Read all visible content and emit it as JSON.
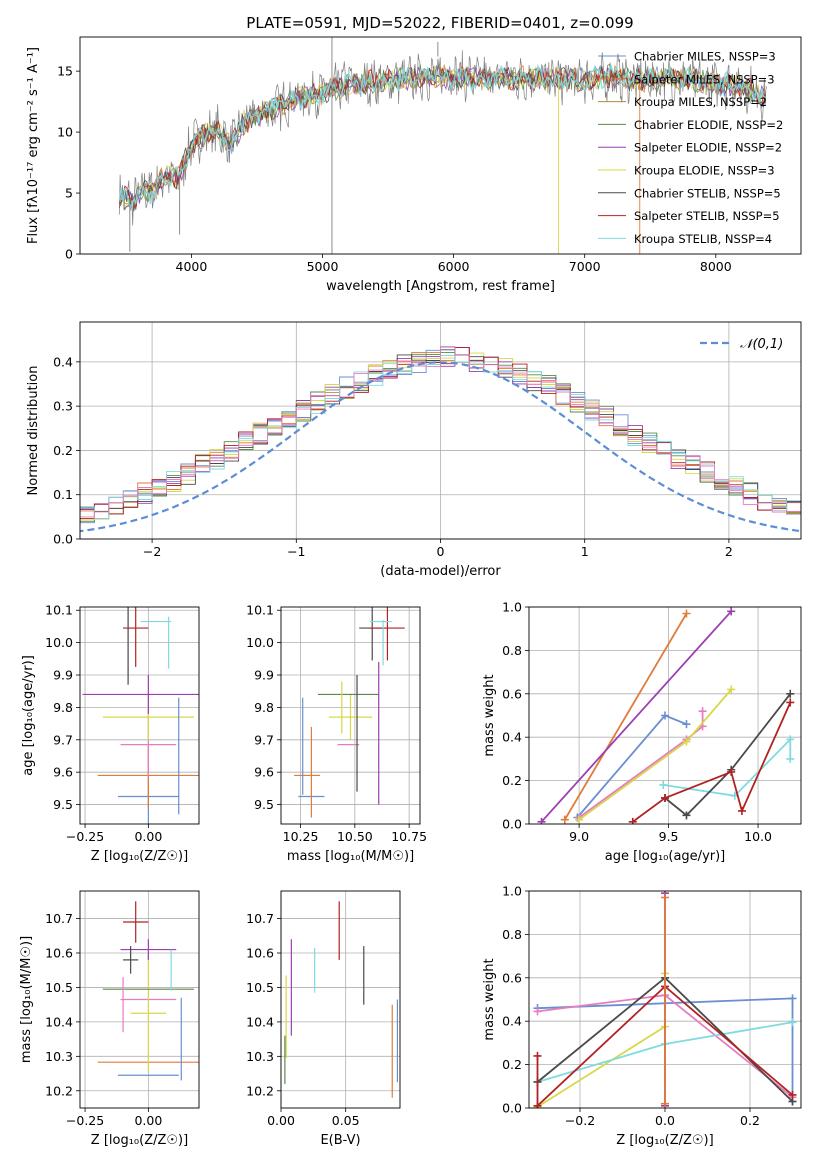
{
  "chart_data": [
    {
      "id": "spectrum",
      "type": "line",
      "title": "PLATE=0591, MJD=52022, FIBERID=0401, z=0.099",
      "xlabel": "wavelength [Angstrom, rest frame]",
      "ylabel": "Flux [fλ10⁻¹⁷ erg cm⁻² s⁻¹ A⁻¹]",
      "xlim": [
        3150,
        8650
      ],
      "ylim": [
        0,
        17.8
      ],
      "xticks": [
        4000,
        5000,
        6000,
        7000,
        8000
      ],
      "yticks": [
        0,
        5,
        10,
        15
      ],
      "grid": false,
      "legend_position": "right",
      "continuum": {
        "x": [
          3450,
          3550,
          3650,
          3700,
          3800,
          3900,
          4000,
          4100,
          4200,
          4300,
          4400,
          4600,
          4800,
          5000,
          5200,
          5400,
          5600,
          5800,
          6000,
          6200,
          6400,
          6600,
          6800,
          7000,
          7200,
          7400,
          7600,
          7800,
          8000,
          8200,
          8390
        ],
        "y": [
          4.8,
          4.3,
          5.3,
          5.0,
          6.5,
          6.2,
          9.0,
          9.8,
          10.2,
          9.0,
          10.8,
          11.8,
          12.8,
          13.2,
          14.0,
          14.1,
          14.3,
          14.6,
          14.6,
          14.4,
          14.4,
          14.5,
          14.3,
          14.3,
          14.6,
          14.3,
          14.4,
          14.3,
          14.0,
          13.8,
          12.8
        ]
      },
      "spikes": [
        {
          "x": 5072,
          "low": 0.0,
          "high": 17.8
        },
        {
          "x": 5880,
          "low": 16.2,
          "high": 17.4
        },
        {
          "x": 6800,
          "low": 0.0,
          "high": 14.3
        },
        {
          "x": 7420,
          "low": 0.0,
          "high": 14.0
        },
        {
          "x": 3910,
          "low": 1.6,
          "high": 6.5
        },
        {
          "x": 3530,
          "low": 0.2,
          "high": 4.5
        }
      ],
      "series": [
        {
          "name": "Chabrier MILES, NSSP=3",
          "color": "#6a8fd0"
        },
        {
          "name": "Salpeter MILES, NSSP=3",
          "color": "#e07b39"
        },
        {
          "name": "Kroupa MILES, NSSP=2",
          "color": "#b08a36"
        },
        {
          "name": "Chabrier ELODIE, NSSP=2",
          "color": "#5a8a4a"
        },
        {
          "name": "Salpeter ELODIE, NSSP=2",
          "color": "#9b3fb0"
        },
        {
          "name": "Kroupa ELODIE, NSSP=3",
          "color": "#d8d84a"
        },
        {
          "name": "Chabrier STELIB, NSSP=5",
          "color": "#4a4a4a"
        },
        {
          "name": "Salpeter STELIB, NSSP=5",
          "color": "#b22222"
        },
        {
          "name": "Kroupa STELIB, NSSP=4",
          "color": "#7fdbdf"
        }
      ]
    },
    {
      "id": "residuals",
      "type": "bar",
      "xlabel": "(data-model)/error",
      "ylabel": "Normed distribution",
      "xlim": [
        -2.5,
        2.5
      ],
      "ylim": [
        0,
        0.49
      ],
      "xticks": [
        -2,
        -1,
        0,
        1,
        2
      ],
      "yticks": [
        0.0,
        0.1,
        0.2,
        0.3,
        0.4
      ],
      "grid": true,
      "bin_width": 0.1,
      "legend": [
        "𝒩(0,1)"
      ],
      "legend_position": "top-right",
      "histogram_color": "#6a8fd0",
      "histogram_values": [
        0.018,
        0.024,
        0.031,
        0.04,
        0.048,
        0.056,
        0.067,
        0.078,
        0.09,
        0.104,
        0.117,
        0.132,
        0.148,
        0.166,
        0.182,
        0.199,
        0.218,
        0.237,
        0.255,
        0.275,
        0.291,
        0.308,
        0.325,
        0.342,
        0.356,
        0.37,
        0.381,
        0.394,
        0.4,
        0.41,
        0.412,
        0.408,
        0.402,
        0.396,
        0.385,
        0.373,
        0.358,
        0.345,
        0.327,
        0.311,
        0.291,
        0.275,
        0.256,
        0.236,
        0.218,
        0.2,
        0.181,
        0.166,
        0.149,
        0.133,
        0.117,
        0.103,
        0.09,
        0.078,
        0.067,
        0.056,
        0.048,
        0.04,
        0.032,
        0.025
      ],
      "histogram_start": -3.0,
      "gaussian_color": "#5b8ed6"
    },
    {
      "id": "age-vs-Z",
      "type": "scatter",
      "xlabel": "Z [log₁₀(Z/Z☉)]",
      "ylabel": "age  [log₁₀(age/yr)]",
      "xlim": [
        -0.27,
        0.2
      ],
      "ylim": [
        9.44,
        10.11
      ],
      "xticks": [
        -0.25,
        0.0
      ],
      "yticks": [
        9.5,
        9.6,
        9.7,
        9.8,
        9.9,
        10.0,
        10.1
      ],
      "grid": true,
      "points": [
        {
          "x": 0.0,
          "y": 9.525,
          "xerr": 0.12,
          "yerr": 0.15,
          "color": "#6a8fd0"
        },
        {
          "x": 0.0,
          "y": 9.59,
          "xerr": 0.2,
          "yerr": 0.1,
          "color": "#e07b39"
        },
        {
          "x": 0.0,
          "y": 9.685,
          "xerr": 0.11,
          "yerr": 0.1,
          "color": "#e87cbf"
        },
        {
          "x": 0.0,
          "y": 9.77,
          "xerr": 0.18,
          "yerr": 0.07,
          "color": "#d8d84a"
        },
        {
          "x": 0.0,
          "y": 9.84,
          "xerr": 0.26,
          "yerr": 0.06,
          "color": "#9b3fb0"
        },
        {
          "x": -0.08,
          "y": 9.99,
          "xerr": 0.0,
          "yerr": 0.12,
          "color": "#4a4a4a"
        },
        {
          "x": -0.05,
          "y": 10.045,
          "xerr": 0.05,
          "yerr": 0.12,
          "color": "#b22222"
        },
        {
          "x": 0.03,
          "y": 10.065,
          "xerr": 0.06,
          "yerr": 0.0,
          "color": "#7fdbdf"
        },
        {
          "x": 0.12,
          "y": 9.65,
          "xerr": 0.0,
          "yerr": 0.18,
          "color": "#6a8fd0"
        },
        {
          "x": 0.08,
          "y": 10.0,
          "xerr": 0.0,
          "yerr": 0.08,
          "color": "#7fdbdf"
        }
      ]
    },
    {
      "id": "age-vs-mass",
      "type": "scatter",
      "xlabel": "mass [log₁₀(M/M☉)]",
      "xlim": [
        10.16,
        10.8
      ],
      "ylim": [
        9.44,
        10.11
      ],
      "xticks": [
        10.25,
        10.5,
        10.75
      ],
      "yticks": [
        9.5,
        9.6,
        9.7,
        9.8,
        9.9,
        10.0,
        10.1
      ],
      "grid": true,
      "points": [
        {
          "x": 10.3,
          "y": 9.525,
          "xerr": 0.06,
          "yerr": 0.0,
          "color": "#6a8fd0"
        },
        {
          "x": 10.28,
          "y": 9.59,
          "xerr": 0.06,
          "yerr": 0.0,
          "color": "#e07b39"
        },
        {
          "x": 10.47,
          "y": 9.685,
          "xerr": 0.05,
          "yerr": 0.0,
          "color": "#e87cbf"
        },
        {
          "x": 10.48,
          "y": 9.77,
          "xerr": 0.1,
          "yerr": 0.07,
          "color": "#d8d84a"
        },
        {
          "x": 10.47,
          "y": 9.84,
          "xerr": 0.14,
          "yerr": 0.0,
          "color": "#5a8a4a"
        },
        {
          "x": 10.58,
          "y": 10.045,
          "xerr": 0.06,
          "yerr": 0.1,
          "color": "#4a4a4a"
        },
        {
          "x": 10.65,
          "y": 10.045,
          "xerr": 0.08,
          "yerr": 0.1,
          "color": "#b22222"
        },
        {
          "x": 10.62,
          "y": 10.065,
          "xerr": 0.05,
          "yerr": 0.0,
          "color": "#7fdbdf"
        },
        {
          "x": 10.26,
          "y": 9.68,
          "xerr": 0.0,
          "yerr": 0.15,
          "color": "#6a8fd0"
        },
        {
          "x": 10.3,
          "y": 9.6,
          "xerr": 0.0,
          "yerr": 0.14,
          "color": "#e07b39"
        },
        {
          "x": 10.44,
          "y": 9.8,
          "xerr": 0.0,
          "yerr": 0.08,
          "color": "#d8d84a"
        },
        {
          "x": 10.51,
          "y": 9.72,
          "xerr": 0.0,
          "yerr": 0.18,
          "color": "#4a4a4a"
        },
        {
          "x": 10.61,
          "y": 9.72,
          "xerr": 0.0,
          "yerr": 0.22,
          "color": "#9b3fb0"
        },
        {
          "x": 10.63,
          "y": 10.0,
          "xerr": 0.0,
          "yerr": 0.07,
          "color": "#7fdbdf"
        }
      ]
    },
    {
      "id": "massweight-vs-age",
      "type": "line",
      "xlabel": "age  [log₁₀(age/yr)]",
      "ylabel": "mass weight",
      "xlim": [
        8.72,
        10.24
      ],
      "ylim": [
        0,
        1
      ],
      "xticks": [
        9.0,
        9.5,
        10.0
      ],
      "yticks": [
        0.0,
        0.2,
        0.4,
        0.6,
        0.8,
        1.0
      ],
      "grid": true,
      "series": [
        {
          "color": "#6a8fd0",
          "x": [
            8.99,
            9.48,
            9.6
          ],
          "y": [
            0.03,
            0.5,
            0.46
          ]
        },
        {
          "color": "#e07b39",
          "x": [
            8.92,
            9.6
          ],
          "y": [
            0.02,
            0.97
          ]
        },
        {
          "color": "#9b3fb0",
          "x": [
            8.79,
            9.85
          ],
          "y": [
            0.01,
            0.98
          ]
        },
        {
          "color": "#e87cbf",
          "x": [
            9.0,
            9.6,
            9.69,
            9.69
          ],
          "y": [
            0.03,
            0.39,
            0.45,
            0.52
          ]
        },
        {
          "color": "#d8d84a",
          "x": [
            9.0,
            9.6,
            9.85
          ],
          "y": [
            0.02,
            0.38,
            0.62
          ]
        },
        {
          "color": "#7fdbdf",
          "x": [
            9.47,
            9.87,
            10.18,
            10.18
          ],
          "y": [
            0.18,
            0.13,
            0.39,
            0.3
          ]
        },
        {
          "color": "#4a4a4a",
          "x": [
            9.48,
            9.6,
            9.85,
            10.18
          ],
          "y": [
            0.12,
            0.04,
            0.25,
            0.6
          ]
        },
        {
          "color": "#b22222",
          "x": [
            9.3,
            9.48,
            9.85,
            9.91,
            10.18
          ],
          "y": [
            0.01,
            0.12,
            0.24,
            0.06,
            0.56
          ]
        }
      ]
    },
    {
      "id": "mass-vs-Z",
      "type": "scatter",
      "xlabel": "Z [log₁₀(Z/Z☉)]",
      "ylabel": "mass [log₁₀(M/M☉)]",
      "xlim": [
        -0.27,
        0.2
      ],
      "ylim": [
        10.15,
        10.78
      ],
      "xticks": [
        -0.25,
        0.0
      ],
      "yticks": [
        10.2,
        10.3,
        10.4,
        10.5,
        10.6,
        10.7
      ],
      "grid": true,
      "points": [
        {
          "x": 0.0,
          "y": 10.245,
          "xerr": 0.12,
          "yerr": 0.0,
          "color": "#6a8fd0"
        },
        {
          "x": 0.0,
          "y": 10.283,
          "xerr": 0.2,
          "yerr": 0.0,
          "color": "#e07b39"
        },
        {
          "x": 0.0,
          "y": 10.465,
          "xerr": 0.11,
          "yerr": 0.0,
          "color": "#e87cbf"
        },
        {
          "x": 0.0,
          "y": 10.425,
          "xerr": 0.07,
          "yerr": 0.17,
          "color": "#d8d84a"
        },
        {
          "x": 0.0,
          "y": 10.495,
          "xerr": 0.18,
          "yerr": 0.0,
          "color": "#5a8a4a"
        },
        {
          "x": 0.0,
          "y": 10.61,
          "xerr": 0.11,
          "yerr": 0.03,
          "color": "#9b3fb0"
        },
        {
          "x": -0.07,
          "y": 10.58,
          "xerr": 0.03,
          "yerr": 0.04,
          "color": "#4a4a4a"
        },
        {
          "x": -0.05,
          "y": 10.69,
          "xerr": 0.05,
          "yerr": 0.06,
          "color": "#b22222"
        },
        {
          "x": 0.13,
          "y": 10.35,
          "xerr": 0.0,
          "yerr": 0.12,
          "color": "#6a8fd0"
        },
        {
          "x": 0.09,
          "y": 10.55,
          "xerr": 0.0,
          "yerr": 0.06,
          "color": "#7fdbdf"
        },
        {
          "x": -0.1,
          "y": 10.45,
          "xerr": 0.0,
          "yerr": 0.08,
          "color": "#e87cbf"
        }
      ]
    },
    {
      "id": "mass-vs-EBV",
      "type": "scatter",
      "xlabel": "E(B-V)",
      "xlim": [
        0.0,
        0.092
      ],
      "ylim": [
        10.15,
        10.78
      ],
      "xticks": [
        0.0,
        0.05
      ],
      "yticks": [
        10.2,
        10.3,
        10.4,
        10.5,
        10.6,
        10.7
      ],
      "grid": true,
      "points": [
        {
          "x": 0.003,
          "y": 10.29,
          "xerr": 0.0,
          "yerr": 0.07,
          "color": "#5a8a4a"
        },
        {
          "x": 0.004,
          "y": 10.415,
          "xerr": 0.0,
          "yerr": 0.12,
          "color": "#d8d84a"
        },
        {
          "x": 0.008,
          "y": 10.5,
          "xerr": 0.0,
          "yerr": 0.14,
          "color": "#9b3fb0"
        },
        {
          "x": 0.026,
          "y": 10.55,
          "xerr": 0.0,
          "yerr": 0.065,
          "color": "#7fdbdf"
        },
        {
          "x": 0.045,
          "y": 10.665,
          "xerr": 0.0,
          "yerr": 0.085,
          "color": "#b22222"
        },
        {
          "x": 0.064,
          "y": 10.535,
          "xerr": 0.0,
          "yerr": 0.085,
          "color": "#4a4a4a"
        },
        {
          "x": 0.086,
          "y": 10.315,
          "xerr": 0.0,
          "yerr": 0.135,
          "color": "#e07b39"
        },
        {
          "x": 0.09,
          "y": 10.345,
          "xerr": 0.0,
          "yerr": 0.12,
          "color": "#6a8fd0"
        }
      ]
    },
    {
      "id": "massweight-vs-Z",
      "type": "line",
      "xlabel": "Z [log₁₀(Z/Z☉)]",
      "ylabel": "mass weight",
      "xlim": [
        -0.32,
        0.32
      ],
      "ylim": [
        0,
        1
      ],
      "xticks": [
        -0.2,
        0.0,
        0.2
      ],
      "yticks": [
        0.0,
        0.2,
        0.4,
        0.6,
        0.8,
        1.0
      ],
      "grid": true,
      "series": [
        {
          "color": "#6a8fd0",
          "x": [
            -0.3,
            0.3,
            0.3
          ],
          "y": [
            0.46,
            0.505,
            0.03
          ]
        },
        {
          "color": "#e87cbf",
          "x": [
            -0.3,
            0.0,
            0.3
          ],
          "y": [
            0.445,
            0.52,
            0.05
          ]
        },
        {
          "color": "#d8d84a",
          "x": [
            -0.3,
            0.0,
            0.0
          ],
          "y": [
            0.005,
            0.375,
            0.62
          ]
        },
        {
          "color": "#7fdbdf",
          "x": [
            -0.3,
            0.0,
            0.3
          ],
          "y": [
            0.12,
            0.295,
            0.395
          ]
        },
        {
          "color": "#4a4a4a",
          "x": [
            -0.3,
            0.0,
            0.3
          ],
          "y": [
            0.12,
            0.6,
            0.03
          ]
        },
        {
          "color": "#b22222",
          "x": [
            -0.3,
            -0.3,
            0.0,
            0.3
          ],
          "y": [
            0.24,
            0.01,
            0.56,
            0.06
          ]
        },
        {
          "color": "#9b3fb0",
          "x": [
            0.0,
            0.0
          ],
          "y": [
            0.01,
            0.99
          ]
        },
        {
          "color": "#e07b39",
          "x": [
            0.0,
            0.0
          ],
          "y": [
            0.02,
            0.97
          ]
        }
      ]
    }
  ]
}
